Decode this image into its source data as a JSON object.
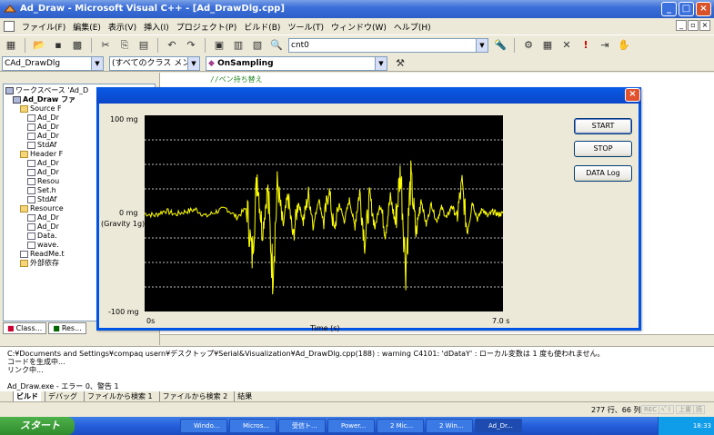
{
  "window": {
    "title": "Ad_Draw - Microsoft Visual C++ - [Ad_DrawDlg.cpp]"
  },
  "menu": [
    "ファイル(F)",
    "編集(E)",
    "表示(V)",
    "挿入(I)",
    "プロジェクト(P)",
    "ビルド(B)",
    "ツール(T)",
    "ウィンドウ(W)",
    "ヘルプ(H)"
  ],
  "toolbar": {
    "find_combo": "cnt0"
  },
  "wizardbar": {
    "class_combo": "CAd_DrawDlg",
    "filter_combo": "(すべてのクラス メンバ)",
    "member_combo": "OnSampling"
  },
  "workspace": {
    "tree": [
      {
        "label": "ワークスペース 'Ad_D",
        "icon": "workspace",
        "indent": 0
      },
      {
        "label": "Ad_Draw ファ",
        "icon": "project",
        "indent": 1
      },
      {
        "label": "Source F",
        "icon": "folder",
        "indent": 2
      },
      {
        "label": "Ad_Dr",
        "icon": "file",
        "indent": 3
      },
      {
        "label": "Ad_Dr",
        "icon": "file",
        "indent": 3
      },
      {
        "label": "Ad_Dr",
        "icon": "file",
        "indent": 3
      },
      {
        "label": "StdAf",
        "icon": "file",
        "indent": 3
      },
      {
        "label": "Header F",
        "icon": "folder",
        "indent": 2
      },
      {
        "label": "Ad_Dr",
        "icon": "file",
        "indent": 3
      },
      {
        "label": "Ad_Dr",
        "icon": "file",
        "indent": 3
      },
      {
        "label": "Resou",
        "icon": "file",
        "indent": 3
      },
      {
        "label": "Set.h",
        "icon": "file",
        "indent": 3
      },
      {
        "label": "StdAf",
        "icon": "file",
        "indent": 3
      },
      {
        "label": "Resource",
        "icon": "folder",
        "indent": 2
      },
      {
        "label": "Ad_Dr",
        "icon": "file",
        "indent": 3
      },
      {
        "label": "Ad_Dr",
        "icon": "file",
        "indent": 3
      },
      {
        "label": "Data.",
        "icon": "file",
        "indent": 3
      },
      {
        "label": "wave.",
        "icon": "file",
        "indent": 3
      },
      {
        "label": "ReadMe.t",
        "icon": "file",
        "indent": 2
      },
      {
        "label": "外部依存",
        "icon": "folder",
        "indent": 2
      }
    ],
    "tabs": [
      "Class...",
      "Res..."
    ]
  },
  "editor": {
    "comment_line": "//ペン持ち替え"
  },
  "dialog": {
    "buttons": {
      "start": "START",
      "stop": "STOP",
      "log": "DATA Log"
    },
    "y_top": "100 mg",
    "y_mid": "0 mg",
    "y_mid_sub": "(Gravity 1g)",
    "y_bottom": "-100 mg",
    "x_left": "0s",
    "x_right": "7.0 s",
    "x_title": "Time (s)"
  },
  "chart_data": {
    "type": "line",
    "xlabel": "Time (s)",
    "ylabel": "",
    "xlim": [
      0,
      7.0
    ],
    "ylim": [
      -100,
      100
    ],
    "grid": true,
    "series": [
      {
        "color": "#ffff00",
        "x": [
          0.0,
          0.2,
          0.4,
          0.6,
          0.8,
          1.0,
          1.2,
          1.4,
          1.6,
          1.8,
          2.0,
          2.1,
          2.2,
          2.3,
          2.4,
          2.5,
          2.6,
          2.7,
          2.8,
          2.9,
          3.0,
          3.1,
          3.2,
          3.3,
          3.4,
          3.5,
          3.6,
          3.7,
          3.8,
          3.9,
          4.0,
          4.1,
          4.2,
          4.3,
          4.4,
          4.5,
          4.6,
          4.7,
          4.8,
          4.9,
          5.0,
          5.1,
          5.2,
          5.3,
          5.4,
          5.5,
          5.6,
          5.7,
          5.8,
          5.9,
          6.0,
          6.1,
          6.2,
          6.3,
          6.4,
          6.5,
          6.6,
          6.7,
          6.8,
          6.9,
          7.0
        ],
        "y": [
          0,
          -2,
          3,
          -1,
          2,
          4,
          -3,
          2,
          5,
          -4,
          6,
          -45,
          40,
          -20,
          25,
          -60,
          30,
          -15,
          18,
          -25,
          12,
          -8,
          20,
          -12,
          15,
          -10,
          25,
          -18,
          10,
          -8,
          14,
          -12,
          22,
          -30,
          18,
          -15,
          12,
          -20,
          16,
          -10,
          45,
          -55,
          38,
          -22,
          15,
          -12,
          10,
          -8,
          6,
          -5,
          8,
          -4,
          30,
          -18,
          12,
          -6,
          5,
          -3,
          2,
          -1,
          0
        ]
      }
    ]
  },
  "output": {
    "lines": [
      "C:¥Documents and Settings¥compaq usern¥デスクトップ¥Serial&Visualization¥Ad_DrawDlg.cpp(188) : warning C4101: 'dDataY' : ローカル変数は 1 度も使われません。",
      "コードを生成中...",
      "リンク中...",
      "",
      "Ad_Draw.exe - エラー 0、警告 1"
    ],
    "tabs": [
      "ビルド",
      "デバッグ",
      "ファイルから検索 1",
      "ファイルから検索 2",
      "結果"
    ]
  },
  "status": {
    "position": "277 行、66 列",
    "indicators": [
      "REC",
      "ﾍﾟﾘ",
      "上書",
      "読"
    ]
  },
  "taskbar": {
    "start": "スタート",
    "buttons": [
      "Windo...",
      "Micros...",
      "受信ト...",
      "Power...",
      "2 Mic...",
      "2 Win...",
      "Ad_Dr..."
    ],
    "clock": "18:33"
  }
}
